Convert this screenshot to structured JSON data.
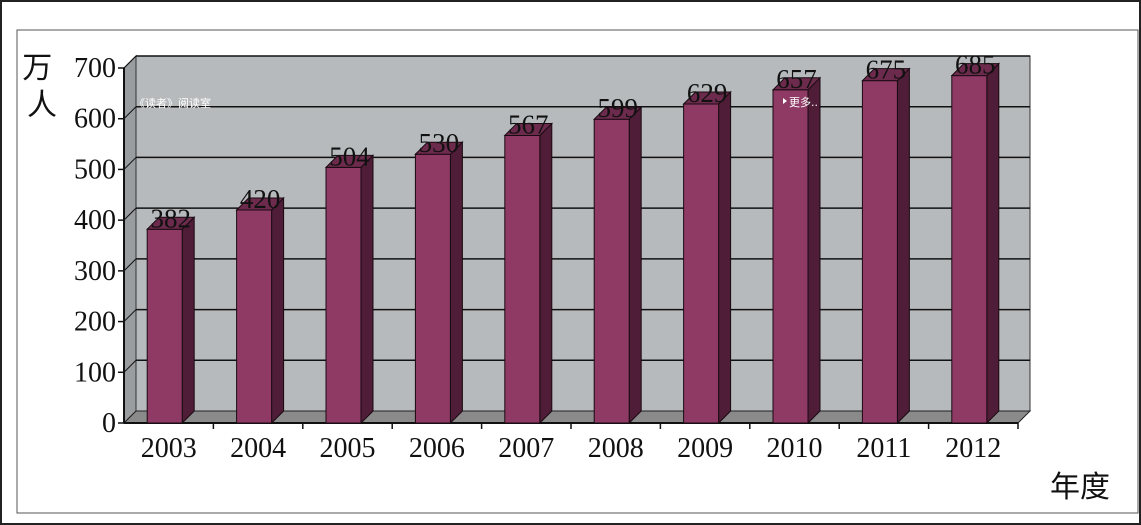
{
  "chart_data": {
    "type": "bar",
    "categories": [
      "2003",
      "2004",
      "2005",
      "2006",
      "2007",
      "2008",
      "2009",
      "2010",
      "2011",
      "2012"
    ],
    "values": [
      382,
      420,
      504,
      530,
      567,
      599,
      629,
      657,
      675,
      685
    ],
    "data_labels": [
      "382",
      "420",
      "504",
      "530",
      "567",
      "599",
      "629",
      "657",
      "675",
      "685"
    ],
    "title": "",
    "xlabel": "年度",
    "ylabel": "万人",
    "ylim": [
      0,
      700
    ],
    "yticks": [
      0,
      100,
      200,
      300,
      400,
      500,
      600,
      700
    ],
    "grid": true,
    "legend": "none",
    "colors": {
      "bar_front": "#8e3a65",
      "bar_side": "#4f1d37",
      "bar_top": "#6c2a4c",
      "plot_back": "#b7babc",
      "plot_floor": "#8a8a8a"
    }
  },
  "overlay": {
    "reader_link": "《读者》阅读室",
    "more_link": "更多.."
  }
}
